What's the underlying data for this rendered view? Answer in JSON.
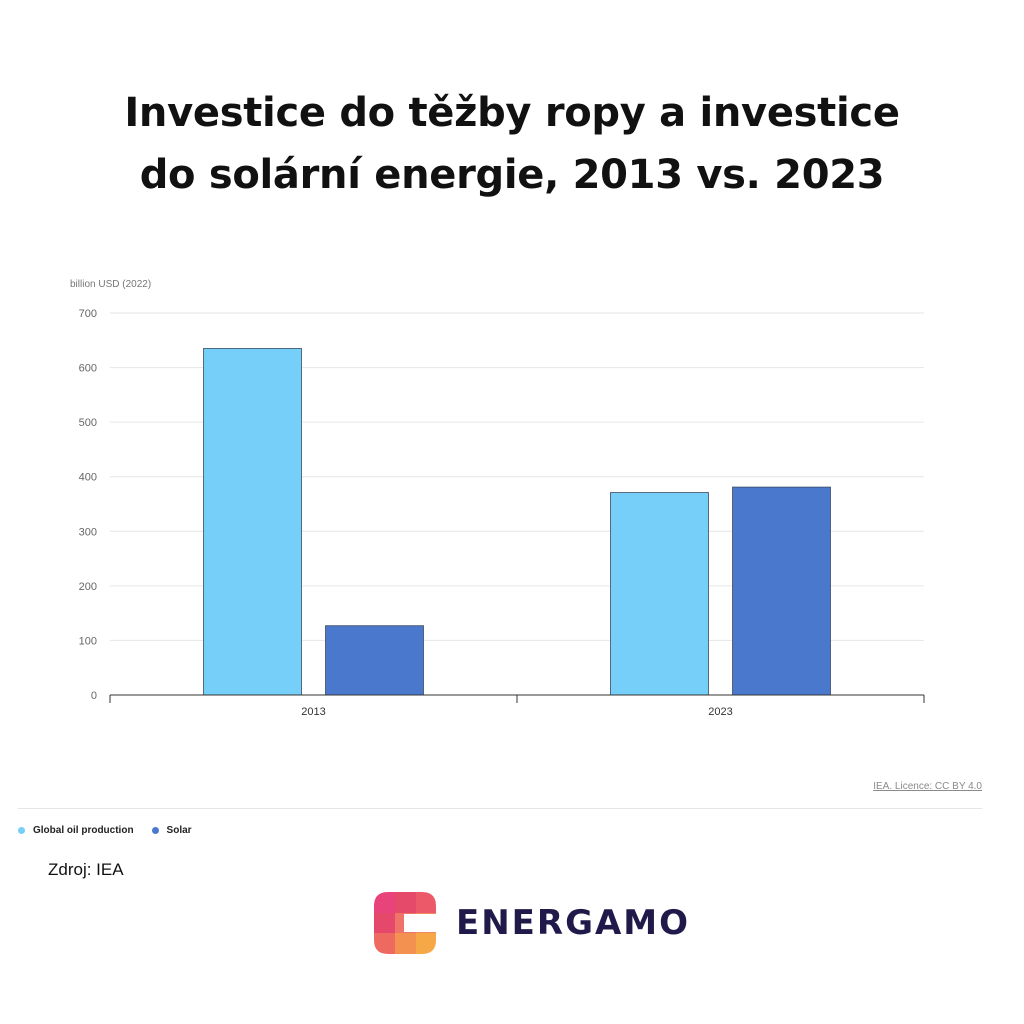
{
  "title": {
    "line1": "Investice do těžby ropy a investice",
    "line2": "do solární energie, 2013 vs. 2023"
  },
  "chart_data": {
    "type": "bar",
    "ylabel": "billion USD (2022)",
    "ylim": [
      0,
      700
    ],
    "yticks": [
      0,
      100,
      200,
      300,
      400,
      500,
      600,
      700
    ],
    "categories": [
      "2013",
      "2023"
    ],
    "series": [
      {
        "name": "Global oil production",
        "values": [
          635,
          371
        ],
        "color": "#75cff8"
      },
      {
        "name": "Solar",
        "values": [
          127,
          381
        ],
        "color": "#4a78cd"
      }
    ],
    "grid": true,
    "legend_position": "bottom-left"
  },
  "attribution": "IEA. Licence: CC BY 4.0",
  "source": "Zdroj: IEA",
  "brand": {
    "name": "ENERGAMO",
    "logo_icon": "energamo-logo-icon"
  }
}
